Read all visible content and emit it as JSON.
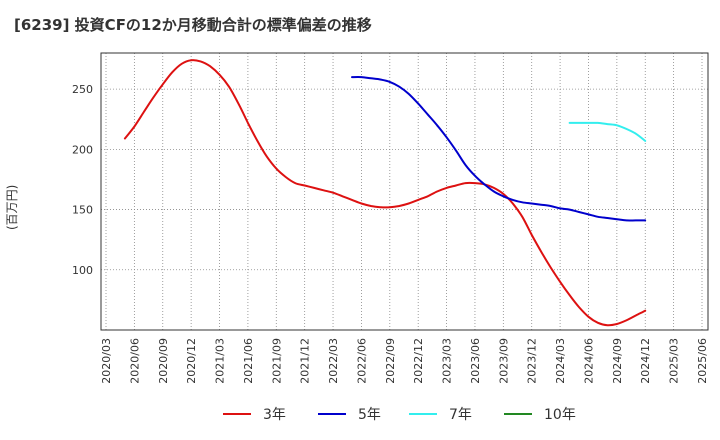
{
  "chart_data": {
    "type": "line",
    "title": "[6239]  投資CFの12か月移動合計の標準偏差の推移",
    "ylabel": "(百万円)",
    "xlabel": "",
    "ylim": [
      50,
      280
    ],
    "y_ticks": [
      100,
      150,
      200,
      250
    ],
    "x_ticks": [
      "2020/03",
      "2020/06",
      "2020/09",
      "2020/12",
      "2021/03",
      "2021/06",
      "2021/09",
      "2021/12",
      "2022/03",
      "2022/06",
      "2022/09",
      "2022/12",
      "2023/03",
      "2023/06",
      "2023/09",
      "2023/12",
      "2024/03",
      "2024/06",
      "2024/09",
      "2024/12",
      "2025/03",
      "2025/06"
    ],
    "grid": true,
    "legend_position": "bottom",
    "series": [
      {
        "name": "3年",
        "color": "#dd1111",
        "points": [
          [
            "2020/05",
            209
          ],
          [
            "2020/06",
            219
          ],
          [
            "2020/07",
            231
          ],
          [
            "2020/08",
            243
          ],
          [
            "2020/09",
            254
          ],
          [
            "2020/10",
            264
          ],
          [
            "2020/11",
            271
          ],
          [
            "2020/12",
            274
          ],
          [
            "2021/01",
            273
          ],
          [
            "2021/02",
            269
          ],
          [
            "2021/03",
            262
          ],
          [
            "2021/04",
            252
          ],
          [
            "2021/05",
            238
          ],
          [
            "2021/06",
            222
          ],
          [
            "2021/07",
            207
          ],
          [
            "2021/08",
            194
          ],
          [
            "2021/09",
            184
          ],
          [
            "2021/10",
            177
          ],
          [
            "2021/11",
            172
          ],
          [
            "2021/12",
            170
          ],
          [
            "2022/01",
            168
          ],
          [
            "2022/02",
            166
          ],
          [
            "2022/03",
            164
          ],
          [
            "2022/04",
            161
          ],
          [
            "2022/05",
            158
          ],
          [
            "2022/06",
            155
          ],
          [
            "2022/07",
            153
          ],
          [
            "2022/08",
            152
          ],
          [
            "2022/09",
            152
          ],
          [
            "2022/10",
            153
          ],
          [
            "2022/11",
            155
          ],
          [
            "2022/12",
            158
          ],
          [
            "2023/01",
            161
          ],
          [
            "2023/02",
            165
          ],
          [
            "2023/03",
            168
          ],
          [
            "2023/04",
            170
          ],
          [
            "2023/05",
            172
          ],
          [
            "2023/06",
            172
          ],
          [
            "2023/07",
            171
          ],
          [
            "2023/08",
            168
          ],
          [
            "2023/09",
            163
          ],
          [
            "2023/10",
            155
          ],
          [
            "2023/11",
            144
          ],
          [
            "2023/12",
            129
          ],
          [
            "2024/01",
            115
          ],
          [
            "2024/02",
            102
          ],
          [
            "2024/03",
            90
          ],
          [
            "2024/04",
            79
          ],
          [
            "2024/05",
            69
          ],
          [
            "2024/06",
            61
          ],
          [
            "2024/07",
            56
          ],
          [
            "2024/08",
            54
          ],
          [
            "2024/09",
            55
          ],
          [
            "2024/10",
            58
          ],
          [
            "2024/11",
            62
          ],
          [
            "2024/12",
            66
          ]
        ]
      },
      {
        "name": "5年",
        "color": "#0000cc",
        "points": [
          [
            "2022/05",
            260
          ],
          [
            "2022/06",
            260
          ],
          [
            "2022/07",
            259
          ],
          [
            "2022/08",
            258
          ],
          [
            "2022/09",
            256
          ],
          [
            "2022/10",
            252
          ],
          [
            "2022/11",
            246
          ],
          [
            "2022/12",
            238
          ],
          [
            "2023/01",
            229
          ],
          [
            "2023/02",
            220
          ],
          [
            "2023/03",
            210
          ],
          [
            "2023/04",
            199
          ],
          [
            "2023/05",
            187
          ],
          [
            "2023/06",
            178
          ],
          [
            "2023/07",
            171
          ],
          [
            "2023/08",
            165
          ],
          [
            "2023/09",
            161
          ],
          [
            "2023/10",
            158
          ],
          [
            "2023/11",
            156
          ],
          [
            "2023/12",
            155
          ],
          [
            "2024/01",
            154
          ],
          [
            "2024/02",
            153
          ],
          [
            "2024/03",
            151
          ],
          [
            "2024/04",
            150
          ],
          [
            "2024/05",
            148
          ],
          [
            "2024/06",
            146
          ],
          [
            "2024/07",
            144
          ],
          [
            "2024/08",
            143
          ],
          [
            "2024/09",
            142
          ],
          [
            "2024/10",
            141
          ],
          [
            "2024/11",
            141
          ],
          [
            "2024/12",
            141
          ]
        ]
      },
      {
        "name": "7年",
        "color": "#33eeee",
        "points": [
          [
            "2024/04",
            222
          ],
          [
            "2024/05",
            222
          ],
          [
            "2024/06",
            222
          ],
          [
            "2024/07",
            222
          ],
          [
            "2024/08",
            221
          ],
          [
            "2024/09",
            220
          ],
          [
            "2024/10",
            217
          ],
          [
            "2024/11",
            213
          ],
          [
            "2024/12",
            207
          ]
        ]
      },
      {
        "name": "10年",
        "color": "#228822",
        "points": []
      }
    ]
  }
}
